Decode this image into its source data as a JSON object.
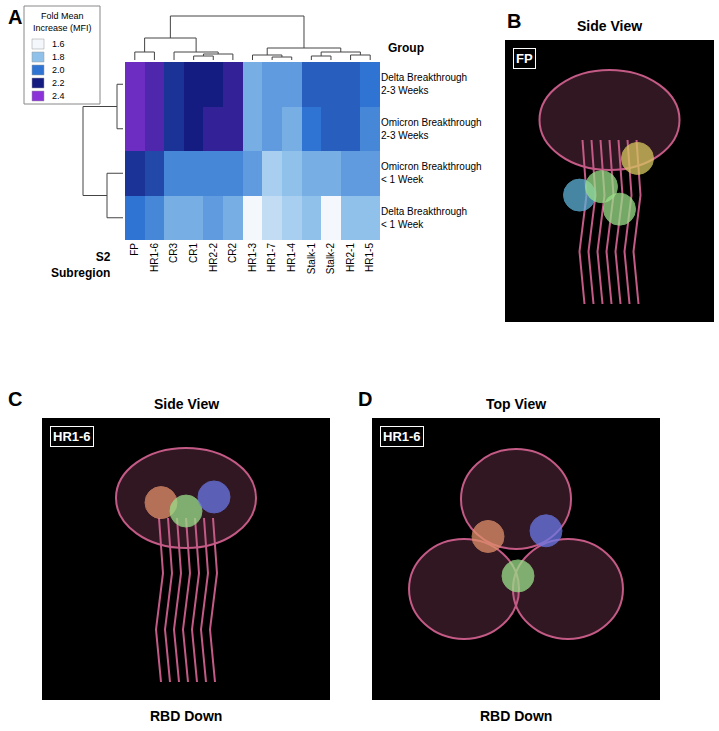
{
  "chart_data": {
    "type": "heatmap",
    "panel_label": "A",
    "columns": [
      "FP",
      "HR1-6",
      "CR3",
      "CR1",
      "HR2-2",
      "CR2",
      "HR1-3",
      "HR1-7",
      "HR1-4",
      "Stalk-1",
      "Stalk-2",
      "HR2-1",
      "HR1-5"
    ],
    "rows": [
      [
        "Delta Breakthrough",
        "2-3 Weeks"
      ],
      [
        "Omicron Breakthrough",
        "2-3 Weeks"
      ],
      [
        "Omicron Breakthrough",
        "< 1 Week"
      ],
      [
        "Delta Breakthrough",
        "< 1 Week"
      ]
    ],
    "values": [
      [
        2.35,
        2.3,
        2.15,
        2.2,
        2.2,
        2.25,
        1.85,
        1.9,
        1.9,
        2.05,
        2.05,
        2.05,
        2.0
      ],
      [
        2.35,
        2.3,
        2.15,
        2.2,
        2.25,
        2.25,
        1.85,
        1.9,
        1.85,
        2.0,
        2.05,
        2.05,
        1.95
      ],
      [
        2.15,
        2.1,
        1.95,
        1.95,
        1.95,
        1.95,
        1.9,
        1.75,
        1.8,
        1.85,
        1.85,
        1.9,
        1.9
      ],
      [
        2.0,
        1.95,
        1.85,
        1.85,
        1.9,
        1.85,
        1.6,
        1.7,
        1.75,
        1.8,
        1.6,
        1.8,
        1.8
      ]
    ],
    "row_axis_label": "Group",
    "column_axis_label": [
      "S2",
      "Subregion"
    ],
    "colorbar": {
      "title": [
        "Fold Mean",
        "Increase (MFI)"
      ],
      "range": [
        1.6,
        2.4
      ],
      "ticks": [
        1.6,
        1.8,
        {
          "value": 2,
          "label": "2.0"
        },
        2.2,
        2.4
      ],
      "colors": [
        "#f4f8fc",
        "#8fc1ea",
        "#2f74d2",
        "#141c82",
        "#8b32d8"
      ]
    }
  },
  "panels": [
    {
      "letter": "B",
      "title": "Side View",
      "label": "FP",
      "view": "side"
    },
    {
      "letter": "C",
      "title": "Side View",
      "label": "HR1-6",
      "footer": "RBD Down",
      "view": "side"
    },
    {
      "letter": "D",
      "title": "Top View",
      "label": "HR1-6",
      "footer": "RBD Down",
      "view": "top"
    }
  ]
}
